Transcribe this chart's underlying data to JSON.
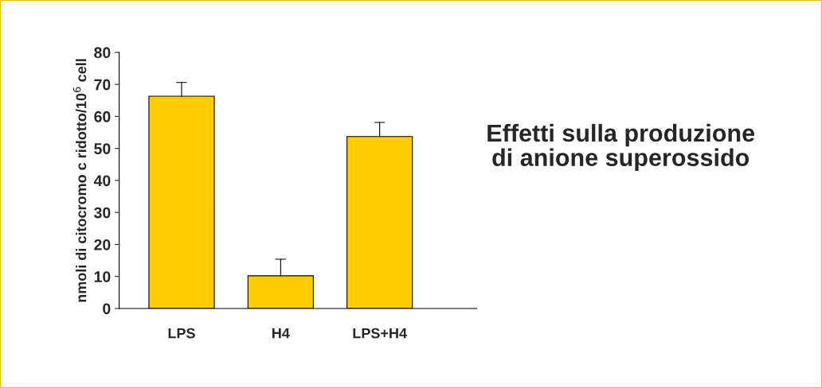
{
  "chart_data": {
    "type": "bar",
    "title": "Effetti sulla produzione di anione superossido",
    "ylabel": "nmoli di citocromo c ridotto/10$^{6}$ cell",
    "categories": [
      "LPS",
      "H4",
      "LPS+H4"
    ],
    "values": [
      66.3,
      10.2,
      53.7
    ],
    "errors": [
      [
        66.3,
        70.6
      ],
      [
        10.2,
        15.4
      ],
      [
        53.7,
        58.1
      ]
    ],
    "color": "#ffcc00",
    "ylim": [
      0,
      80
    ],
    "yticks": [
      0,
      10,
      20,
      30,
      40,
      50,
      60,
      70,
      80
    ],
    "grid": false,
    "legend": false
  }
}
